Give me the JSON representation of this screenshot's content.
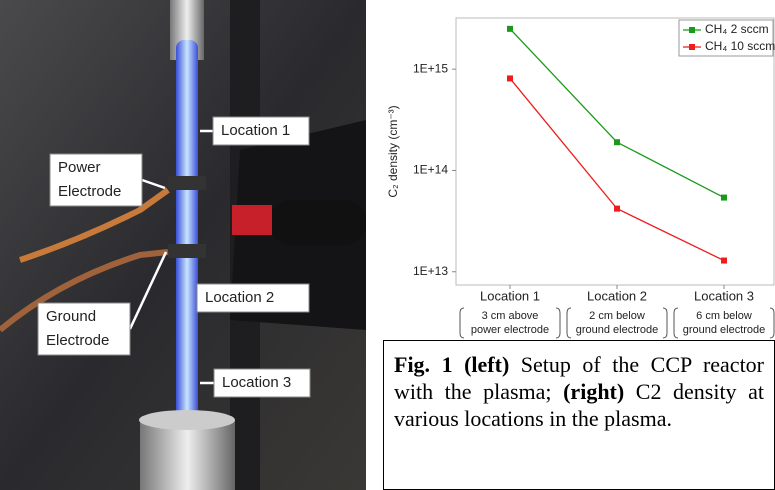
{
  "photo": {
    "labels": [
      {
        "lines": [
          "Location 1"
        ]
      },
      {
        "lines": [
          "Power",
          "Electrode"
        ]
      },
      {
        "lines": [
          "Location 2"
        ]
      },
      {
        "lines": [
          "Ground",
          "Electrode"
        ]
      },
      {
        "lines": [
          "Location 3"
        ]
      }
    ]
  },
  "chart_data": {
    "type": "line",
    "y_label": "C₂ density (cm⁻³)",
    "categories": [
      "Location 1",
      "Location 2",
      "Location 3"
    ],
    "category_notes": [
      [
        "3 cm above",
        "power electrode"
      ],
      [
        "2 cm below",
        "ground electrode"
      ],
      [
        "6 cm below",
        "ground electrode"
      ]
    ],
    "series": [
      {
        "name": "CH₄ 2 sccm",
        "color": "#1a9a1a",
        "values": [
          2500000000000000.0,
          190000000000000.0,
          54000000000000.0
        ]
      },
      {
        "name": "CH₄ 10 sccm",
        "color": "#ee1c1c",
        "values": [
          810000000000000.0,
          42000000000000.0,
          12900000000000.0
        ]
      }
    ],
    "log_scale": true,
    "ylim": [
      7400000000000.0,
      3200000000000000.0
    ],
    "yticks": [
      {
        "value": 10000000000000.0,
        "label": "1E+13"
      },
      {
        "value": 100000000000000.0,
        "label": "1E+14"
      },
      {
        "value": 1000000000000000.0,
        "label": "1E+15"
      }
    ],
    "legend": "upper right"
  },
  "caption": {
    "parts": [
      {
        "text": "Fig. 1 (left)",
        "bold": true
      },
      {
        "text": " Setup of the CCP reactor with the plasma; ",
        "bold": false
      },
      {
        "text": "(right)",
        "bold": true
      },
      {
        "text": " C2 density at various locations in the plasma.",
        "bold": false
      }
    ]
  }
}
